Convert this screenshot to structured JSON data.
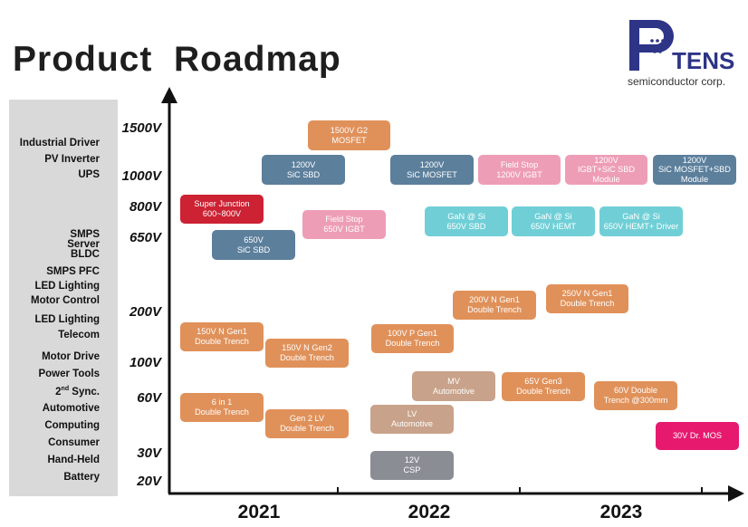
{
  "title": "Product  Roadmap",
  "logo": {
    "wordmark": "TENS",
    "tagline": "semiconductor corp."
  },
  "applications": [
    "Industrial Driver",
    "PV  Inverter",
    "UPS",
    "SMPS",
    "Server",
    "BLDC",
    "SMPS PFC",
    "LED Lighting",
    "Motor Control",
    "LED Lighting",
    "Telecom",
    "Motor Drive",
    "Power Tools",
    "2nd  Sync.",
    "Automotive",
    "Computing",
    "Consumer",
    "Hand-Held",
    "Battery"
  ],
  "voltages": [
    "1500V",
    "1000V",
    "800V",
    "650V",
    "200V",
    "100V",
    "60V",
    "30V",
    "20V"
  ],
  "years": [
    "2021",
    "2022",
    "2023"
  ],
  "products": [
    {
      "text": "1500V G2\nMOSFET",
      "color": "orange"
    },
    {
      "text": "1200V\nSiC SBD",
      "color": "blue"
    },
    {
      "text": "1200V\nSiC MOSFET",
      "color": "blue"
    },
    {
      "text": "Field Stop\n1200V IGBT",
      "color": "pink"
    },
    {
      "text": "1200V\nIGBT+SiC SBD\nModule",
      "color": "pink"
    },
    {
      "text": "1200V\nSiC MOSFET+SBD\nModule",
      "color": "blue"
    },
    {
      "text": "Super Junction\n600~800V",
      "color": "red"
    },
    {
      "text": "Field Stop\n650V IGBT",
      "color": "pink"
    },
    {
      "text": "GaN @ Si\n650V SBD",
      "color": "teal"
    },
    {
      "text": "GaN @ Si\n650V HEMT",
      "color": "teal"
    },
    {
      "text": "GaN @ Si\n650V HEMT+ Driver",
      "color": "teal"
    },
    {
      "text": "650V\nSiC SBD",
      "color": "blue"
    },
    {
      "text": "200V N Gen1\nDouble Trench",
      "color": "orange"
    },
    {
      "text": "250V N Gen1\nDouble Trench",
      "color": "orange"
    },
    {
      "text": "150V N Gen1\nDouble Trench",
      "color": "orange"
    },
    {
      "text": "100V P Gen1\nDouble Trench",
      "color": "orange"
    },
    {
      "text": "150V N Gen2\nDouble Trench",
      "color": "orange"
    },
    {
      "text": "MV\nAutomotive",
      "color": "tan"
    },
    {
      "text": "65V Gen3\nDouble Trench",
      "color": "orange"
    },
    {
      "text": "60V Double\nTrench @300mm",
      "color": "orange"
    },
    {
      "text": "6 in 1\nDouble Trench",
      "color": "orange"
    },
    {
      "text": "LV\nAutomotive",
      "color": "tan"
    },
    {
      "text": "Gen 2 LV\nDouble Trench",
      "color": "orange"
    },
    {
      "text": "30V Dr. MOS",
      "color": "magenta"
    },
    {
      "text": "12V\nCSP",
      "color": "gray"
    }
  ]
}
